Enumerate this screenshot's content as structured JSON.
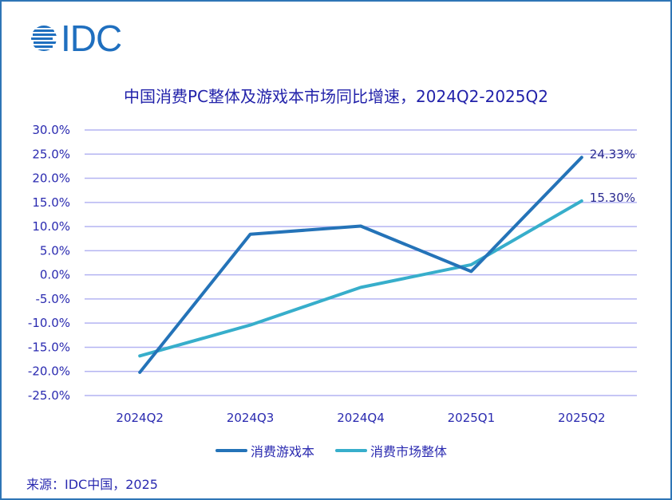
{
  "logo": {
    "text": "IDC",
    "icon": "idc-globe-icon",
    "color": "#1f6fbf"
  },
  "title": "中国消费PC整体及游戏本市场同比增速，2024Q2-2025Q2",
  "legend": [
    {
      "label": "消费游戏本",
      "color": "#2473b8"
    },
    {
      "label": "消费市场整体",
      "color": "#37aecb"
    }
  ],
  "source": "来源：IDC中国，2025",
  "colors": {
    "text": "#2a2ab0",
    "grid": "#b4b4f2",
    "border": "#2e75b6"
  },
  "chart_data": {
    "type": "line",
    "title": "中国消费PC整体及游戏本市场同比增速，2024Q2-2025Q2",
    "categories": [
      "2024Q2",
      "2024Q3",
      "2024Q4",
      "2025Q1",
      "2025Q2"
    ],
    "series": [
      {
        "name": "消费游戏本",
        "color": "#2473b8",
        "values": [
          -20.2,
          8.4,
          10.1,
          0.7,
          24.33
        ]
      },
      {
        "name": "消费市场整体",
        "color": "#37aecb",
        "values": [
          -16.8,
          -10.4,
          -2.6,
          2.1,
          15.3
        ]
      }
    ],
    "annotations": [
      {
        "series": "消费游戏本",
        "category": "2025Q2",
        "text": "24.33%"
      },
      {
        "series": "消费市场整体",
        "category": "2025Q2",
        "text": "15.30%"
      }
    ],
    "yticks": [
      "30.0%",
      "25.0%",
      "20.0%",
      "15.0%",
      "10.0%",
      "5.0%",
      "0.0%",
      "-5.0%",
      "-10.0%",
      "-15.0%",
      "-20.0%",
      "-25.0%"
    ],
    "ylim": [
      -25,
      30
    ],
    "xlabel": "",
    "ylabel": "",
    "grid": true,
    "legend_position": "bottom"
  }
}
